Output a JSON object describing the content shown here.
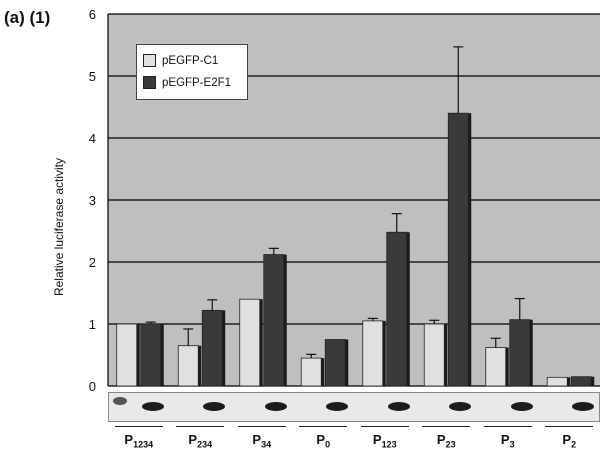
{
  "panel_label": "(a) (1)",
  "colors": {
    "plot_bg": "#bfbfbf",
    "series1": "#e0e0e0",
    "series2": "#3a3a3a",
    "grid": "#000000"
  },
  "chart_data": {
    "type": "bar",
    "ylabel": "Relative luciferase activity",
    "ylim": [
      0,
      6
    ],
    "yticks": [
      "0",
      "1",
      "2",
      "3",
      "4",
      "5",
      "6"
    ],
    "grid": true,
    "legend_position": "top-left",
    "categories": [
      {
        "main": "P",
        "sub": "1234"
      },
      {
        "main": "P",
        "sub": "234"
      },
      {
        "main": "P",
        "sub": "34"
      },
      {
        "main": "P",
        "sub": "0"
      },
      {
        "main": "P",
        "sub": "123"
      },
      {
        "main": "P",
        "sub": "23"
      },
      {
        "main": "P",
        "sub": "3"
      },
      {
        "main": "P",
        "sub": "2"
      }
    ],
    "series": [
      {
        "name": "pEGFP-C1",
        "values": [
          1.0,
          0.65,
          1.4,
          0.45,
          1.05,
          1.0,
          0.62,
          0.14
        ],
        "errors": [
          0.0,
          0.27,
          0.0,
          0.06,
          0.04,
          0.06,
          0.15,
          0.0
        ]
      },
      {
        "name": "pEGFP-E2F1",
        "values": [
          1.0,
          1.22,
          2.12,
          0.75,
          2.48,
          4.4,
          1.07,
          0.15
        ],
        "errors": [
          0.03,
          0.17,
          0.1,
          0.0,
          0.3,
          1.07,
          0.34,
          0.0
        ]
      }
    ],
    "blot_bands": [
      1,
      1,
      1,
      1,
      1,
      1,
      1,
      1
    ]
  }
}
